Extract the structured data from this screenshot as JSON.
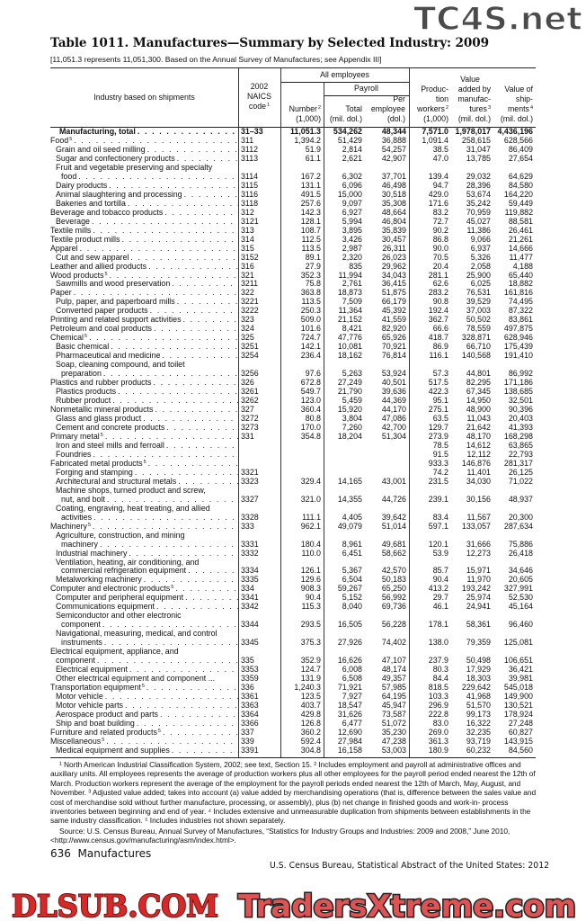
{
  "title": "Table 1011. Manufactures—Summary by Selected Industry: 2009",
  "subtitle": "[11,051.3 represents 11,051,300. Based on the Annual Survey of Manufactures; see Appendix III]",
  "header": {
    "industry": "Industry based on shipments",
    "naics": [
      "2002",
      "NAICS",
      "code"
    ],
    "naics_sup": "1",
    "all_employees": "All employees",
    "payroll": "Payroll",
    "number": [
      "Number",
      "(1,000)"
    ],
    "number_sup": "2",
    "total": [
      "Total",
      "(mil. dol.)"
    ],
    "per_employee": [
      "Per",
      "employee",
      "(dol.)"
    ],
    "production": [
      "Produc-",
      "tion",
      "workers",
      "(1,000)"
    ],
    "production_sup": "2",
    "value_added": [
      "Value",
      "added by",
      "manufac-",
      "tures",
      "(mil. dol.)"
    ],
    "value_added_sup": "3",
    "shipments": [
      "Value of",
      "ship-",
      "ments",
      "(mil. dol.)"
    ],
    "shipments_sup": "4"
  },
  "rows": [
    {
      "label": "Manufacturing, total",
      "level": 1,
      "bold": true,
      "code": "31–33",
      "v": [
        "11,051.3",
        "534,262",
        "48,344",
        "7,571.0",
        "1,978,017",
        "4,436,196"
      ]
    },
    {
      "label": "Food",
      "sup": "5",
      "level": 0,
      "code": "311",
      "v": [
        "1,394.2",
        "51,429",
        "36,888",
        "1,091.4",
        "258,615",
        "628,566"
      ]
    },
    {
      "label": "Grain and oil seed milling",
      "level": 1,
      "code": "3112",
      "v": [
        "51.9",
        "2,814",
        "54,257",
        "38.5",
        "31,047",
        "86,409"
      ]
    },
    {
      "label": "Sugar and confectionery products",
      "level": 1,
      "code": "3113",
      "v": [
        "61.1",
        "2,621",
        "42,907",
        "47.0",
        "13,785",
        "27,654"
      ]
    },
    {
      "label": "Fruit and vegetable preserving and specialty",
      "level": 1,
      "wrap": true
    },
    {
      "label": "food",
      "level": 2,
      "code": "3114",
      "v": [
        "167.2",
        "6,302",
        "37,701",
        "139.4",
        "29,032",
        "64,629"
      ]
    },
    {
      "label": "Dairy products",
      "level": 1,
      "code": "3115",
      "v": [
        "131.1",
        "6,096",
        "46,498",
        "94.7",
        "28,396",
        "84,580"
      ]
    },
    {
      "label": "Animal slaughtering and processing",
      "level": 1,
      "code": "3116",
      "v": [
        "491.5",
        "15,000",
        "30,518",
        "429.0",
        "53,674",
        "164,220"
      ]
    },
    {
      "label": "Bakeries and tortilla",
      "level": 1,
      "code": "3118",
      "v": [
        "257.6",
        "9,097",
        "35,308",
        "171.6",
        "35,242",
        "59,449"
      ]
    },
    {
      "label": "Beverage and tobacco products",
      "level": 0,
      "code": "312",
      "v": [
        "142.3",
        "6,927",
        "48,664",
        "83.2",
        "70,959",
        "119,882"
      ]
    },
    {
      "label": "Beverage",
      "level": 1,
      "code": "3121",
      "v": [
        "128.1",
        "5,994",
        "46,804",
        "72.7",
        "45,027",
        "88,581"
      ]
    },
    {
      "label": "Textile mills",
      "level": 0,
      "code": "313",
      "v": [
        "108.7",
        "3,895",
        "35,839",
        "90.2",
        "11,386",
        "26,461"
      ]
    },
    {
      "label": "Textile product mills",
      "level": 0,
      "code": "314",
      "v": [
        "112.5",
        "3,426",
        "30,457",
        "86.8",
        "9,066",
        "21,261"
      ]
    },
    {
      "label": "Apparel",
      "level": 0,
      "code": "315",
      "v": [
        "113.5",
        "2,987",
        "26,311",
        "90.0",
        "6,937",
        "14,666"
      ]
    },
    {
      "label": "Cut and sew apparel",
      "level": 1,
      "code": "3152",
      "v": [
        "89.1",
        "2,320",
        "26,023",
        "70.5",
        "5,326",
        "11,477"
      ]
    },
    {
      "label": "Leather and allied products",
      "level": 0,
      "code": "316",
      "v": [
        "27.9",
        "835",
        "29,962",
        "20.4",
        "2,058",
        "4,188"
      ]
    },
    {
      "label": "Wood products",
      "sup": "5",
      "level": 0,
      "code": "321",
      "v": [
        "352.3",
        "11,994",
        "34,043",
        "281.1",
        "25,900",
        "65,440"
      ]
    },
    {
      "label": "Sawmills and wood preservation",
      "level": 1,
      "code": "3211",
      "v": [
        "75.8",
        "2,761",
        "36,415",
        "62.6",
        "6,025",
        "18,882"
      ]
    },
    {
      "label": "Paper",
      "level": 0,
      "code": "322",
      "v": [
        "363.8",
        "18,873",
        "51,875",
        "283.2",
        "76,531",
        "161,816"
      ]
    },
    {
      "label": "Pulp, paper, and paperboard mills",
      "level": 1,
      "code": "3221",
      "v": [
        "113.5",
        "7,509",
        "66,179",
        "90.8",
        "39,529",
        "74,495"
      ]
    },
    {
      "label": "Converted paper products",
      "level": 1,
      "code": "3222",
      "v": [
        "250.3",
        "11,364",
        "45,392",
        "192.4",
        "37,003",
        "87,322"
      ]
    },
    {
      "label": "Printing and related support activities",
      "level": 0,
      "code": "323",
      "v": [
        "509.0",
        "21,152",
        "41,559",
        "362.7",
        "50,502",
        "83,861"
      ]
    },
    {
      "label": "Petroleum and coal products",
      "level": 0,
      "code": "324",
      "v": [
        "101.6",
        "8,421",
        "82,920",
        "66.6",
        "78,559",
        "497,875"
      ]
    },
    {
      "label": "Chemical",
      "sup": "5",
      "level": 0,
      "code": "325",
      "v": [
        "724.7",
        "47,776",
        "65,926",
        "418.7",
        "328,871",
        "628,946"
      ]
    },
    {
      "label": "Basic chemical",
      "level": 1,
      "code": "3251",
      "v": [
        "142.1",
        "10,081",
        "70,921",
        "86.9",
        "66,710",
        "175,439"
      ]
    },
    {
      "label": "Pharmaceutical and medicine",
      "level": 1,
      "code": "3254",
      "v": [
        "236.4",
        "18,162",
        "76,814",
        "116.1",
        "140,568",
        "191,410"
      ]
    },
    {
      "label": "Soap, cleaning compound, and toilet",
      "level": 1,
      "wrap": true
    },
    {
      "label": "preparation",
      "level": 2,
      "code": "3256",
      "v": [
        "97.6",
        "5,263",
        "53,924",
        "57.3",
        "44,801",
        "86,992"
      ]
    },
    {
      "label": "Plastics and rubber products",
      "level": 0,
      "code": "326",
      "v": [
        "672.8",
        "27,249",
        "40,501",
        "517.5",
        "82,295",
        "171,186"
      ]
    },
    {
      "label": "Plastics products",
      "level": 1,
      "code": "3261",
      "v": [
        "549.7",
        "21,790",
        "39,636",
        "422.3",
        "67,345",
        "138,685"
      ]
    },
    {
      "label": "Rubber product",
      "level": 1,
      "code": "3262",
      "v": [
        "123.0",
        "5,459",
        "44,369",
        "95.1",
        "14,950",
        "32,501"
      ]
    },
    {
      "label": "Nonmetallic mineral products",
      "level": 0,
      "code": "327",
      "v": [
        "360.4",
        "15,920",
        "44,170",
        "275.1",
        "48,900",
        "90,396"
      ]
    },
    {
      "label": "Glass and glass product",
      "level": 1,
      "code": "3272",
      "v": [
        "80.8",
        "3,804",
        "47,086",
        "63.5",
        "11,043",
        "20,403"
      ]
    },
    {
      "label": "Cement and concrete products",
      "level": 1,
      "code": "3273",
      "v": [
        "170.0",
        "7,260",
        "42,700",
        "129.7",
        "21,642",
        "41,393"
      ]
    },
    {
      "label": "Primary metal",
      "sup": "5",
      "level": 0,
      "code": "331",
      "v": [
        "354.8",
        "18,204",
        "51,304",
        "273.9",
        "48,170",
        "168,298"
      ]
    },
    {
      "label": "Iron and steel mills and ferroall",
      "level": 1,
      "code": "",
      "v": [
        "",
        "",
        "",
        "78.5",
        "14,612",
        "63,865"
      ]
    },
    {
      "label": "Foundries",
      "level": 1,
      "code": "",
      "v": [
        "",
        "",
        "",
        "91.5",
        "12,112",
        "22,793"
      ]
    },
    {
      "label": "Fabricated metal products",
      "sup": "5",
      "level": 0,
      "code": "",
      "v": [
        "",
        "",
        "",
        "933.3",
        "146,876",
        "281,317"
      ]
    },
    {
      "label": "Forging and stamping",
      "level": 1,
      "code": "3321",
      "v": [
        "",
        "",
        "",
        "74.2",
        "11,401",
        "26,125"
      ]
    },
    {
      "label": "Architectural and structural metals",
      "level": 1,
      "code": "3323",
      "v": [
        "329.4",
        "14,165",
        "43,001",
        "231.5",
        "34,030",
        "71,022"
      ]
    },
    {
      "label": "Machine shops, turned product and screw,",
      "level": 1,
      "wrap": true
    },
    {
      "label": "nut, and bolt",
      "level": 2,
      "code": "3327",
      "v": [
        "321.0",
        "14,355",
        "44,726",
        "239.1",
        "30,156",
        "48,937"
      ]
    },
    {
      "label": "Coating, engraving, heat treating, and allied",
      "level": 1,
      "wrap": true
    },
    {
      "label": "activities",
      "level": 2,
      "code": "3328",
      "v": [
        "111.1",
        "4,405",
        "39,642",
        "83.4",
        "11,567",
        "20,300"
      ]
    },
    {
      "label": "Machinery",
      "sup": "5",
      "level": 0,
      "code": "333",
      "v": [
        "962.1",
        "49,079",
        "51,014",
        "597.1",
        "133,057",
        "287,634"
      ]
    },
    {
      "label": "Agriculture, construction, and mining",
      "level": 1,
      "wrap": true
    },
    {
      "label": "machinery",
      "level": 2,
      "code": "3331",
      "v": [
        "180.4",
        "8,961",
        "49,681",
        "120.1",
        "31,666",
        "75,886"
      ]
    },
    {
      "label": "Industrial machinery",
      "level": 1,
      "code": "3332",
      "v": [
        "110.0",
        "6,451",
        "58,662",
        "53.9",
        "12,273",
        "26,418"
      ]
    },
    {
      "label": "Ventilation, heating, air conditioning, and",
      "level": 1,
      "wrap": true
    },
    {
      "label": "commercial refrigeration equipment",
      "level": 2,
      "code": "3334",
      "v": [
        "126.1",
        "5,367",
        "42,570",
        "85.7",
        "15,971",
        "34,646"
      ]
    },
    {
      "label": "Metalworking machinery",
      "level": 1,
      "code": "3335",
      "v": [
        "129.6",
        "6,504",
        "50,183",
        "90.4",
        "11,970",
        "20,605"
      ]
    },
    {
      "label": "Computer and electronic products",
      "sup": "5",
      "level": 0,
      "code": "334",
      "v": [
        "908.3",
        "59,267",
        "65,250",
        "413.2",
        "193,242",
        "327,991"
      ]
    },
    {
      "label": "Computer and peripheral equipment",
      "level": 1,
      "code": "3341",
      "v": [
        "90.4",
        "5,152",
        "56,992",
        "29.7",
        "25,974",
        "52,530"
      ]
    },
    {
      "label": "Communications equipment",
      "level": 1,
      "code": "3342",
      "v": [
        "115.3",
        "8,040",
        "69,736",
        "46.1",
        "24,941",
        "45,164"
      ]
    },
    {
      "label": "Semiconductor and other electronic",
      "level": 1,
      "wrap": true
    },
    {
      "label": "component",
      "level": 2,
      "code": "3344",
      "v": [
        "293.5",
        "16,505",
        "56,228",
        "178.1",
        "58,361",
        "96,460"
      ]
    },
    {
      "label": "Navigational, measuring, medical, and control",
      "level": 1,
      "wrap": true
    },
    {
      "label": "instruments",
      "level": 2,
      "code": "3345",
      "v": [
        "375.3",
        "27,926",
        "74,402",
        "138.0",
        "79,359",
        "125,081"
      ]
    },
    {
      "label": "Electrical equipment, appliance, and",
      "level": 0,
      "wrap": true
    },
    {
      "label": "component",
      "level": 1,
      "code": "335",
      "v": [
        "352.9",
        "16,626",
        "47,107",
        "237.9",
        "50,498",
        "106,651"
      ]
    },
    {
      "label": "Electrical equipment",
      "level": 1,
      "code": "3353",
      "v": [
        "124.7",
        "6,008",
        "48,174",
        "80.3",
        "17,929",
        "36,421"
      ]
    },
    {
      "label": "Other electrical equipment and component ...",
      "level": 1,
      "nodots": true,
      "code": "3359",
      "v": [
        "131.9",
        "6,508",
        "49,357",
        "84.4",
        "18,303",
        "39,981"
      ]
    },
    {
      "label": "Transportation equipment",
      "sup": "5",
      "level": 0,
      "code": "336",
      "v": [
        "1,240.3",
        "71,921",
        "57,985",
        "818.5",
        "229,642",
        "545,018"
      ]
    },
    {
      "label": "Motor vehicle",
      "level": 1,
      "code": "3361",
      "v": [
        "123.5",
        "7,927",
        "64,195",
        "103.3",
        "41,968",
        "149,900"
      ]
    },
    {
      "label": "Motor vehicle parts",
      "level": 1,
      "code": "3363",
      "v": [
        "403.7",
        "18,547",
        "45,947",
        "296.9",
        "51,570",
        "130,521"
      ]
    },
    {
      "label": "Aerospace product and parts",
      "level": 1,
      "code": "3364",
      "v": [
        "429.8",
        "31,626",
        "73,587",
        "222.8",
        "99,173",
        "178,924"
      ]
    },
    {
      "label": "Ship and boat building",
      "level": 1,
      "code": "3366",
      "v": [
        "126.8",
        "6,477",
        "51,072",
        "83.0",
        "16,322",
        "27,248"
      ]
    },
    {
      "label": "Furniture and related products",
      "sup": "5",
      "level": 0,
      "code": "337",
      "v": [
        "360.2",
        "12,690",
        "35,230",
        "269.0",
        "32,235",
        "60,827"
      ]
    },
    {
      "label": "Miscellaneous",
      "sup": "5",
      "level": 0,
      "code": "339",
      "v": [
        "592.4",
        "27,984",
        "47,238",
        "361.3",
        "93,719",
        "143,915"
      ]
    },
    {
      "label": "Medical equipment and supplies",
      "level": 1,
      "code": "3391",
      "v": [
        "304.8",
        "16,158",
        "53,003",
        "180.9",
        "60,232",
        "84,560"
      ]
    }
  ],
  "footnotes": "¹ North American Industrial Classification System, 2002; see text, Section 15. ² Includes employment and payroll at administrative offices and auxiliary units. All employees represents the average of production workers plus all other employees for the payroll period ended nearest the 12th of March. Production workers represent the average of the employment for the payroll periods ended nearest the 12th of March, May, August, and November. ³ Adjusted value added; takes into account (a) value added by merchandising operations (that is, difference between the sales value and cost of merchandise sold without further manufacture, processing, or assembly), plus (b) net change in finished goods and work-in- process inventories between beginning and end of year. ⁴ Includes extensive and unmeasurable duplication from shipments between establishments in the same industry classification. ⁵ Includes industries not shown separately.",
  "source": "Source: U.S. Census Bureau, Annual Survey of Manufactures, “Statistics for Industry Groups and Industries: 2009 and 2008,” June 2010, <http://www.census.gov/manufacturing/asm/index.html>.",
  "page_footer": "636  Manufactures",
  "publication": "U.S. Census Bureau, Statistical Abstract of the United States: 2012",
  "watermarks": {
    "top": "TC4S.net",
    "middle": "DLSUB.COM",
    "bottom": "TradersXtreme.com"
  },
  "colors": {
    "watermark_red": "#d42a2a",
    "watermark_gray": "#4b4b4b"
  }
}
